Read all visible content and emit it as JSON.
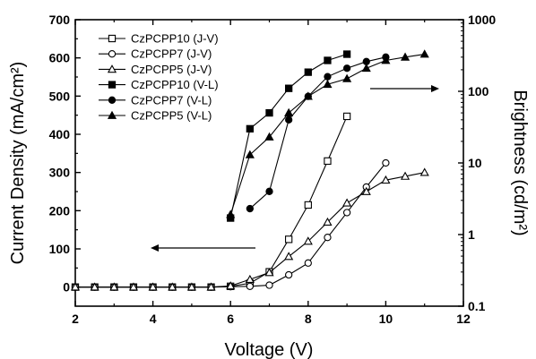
{
  "chart_data": {
    "type": "line",
    "title": "",
    "xlabel": "Voltage (V)",
    "ylabel_left": "Current Density (mA/cm²)",
    "ylabel_right": "Brightness (cd/m²)",
    "xlim": [
      2,
      12
    ],
    "ylim_left": [
      -50,
      700
    ],
    "ylim_right": [
      0.1,
      1000
    ],
    "right_scale": "log",
    "x_ticks": [
      "2",
      "4",
      "6",
      "8",
      "10",
      "12"
    ],
    "y_left_ticks": [
      "0",
      "100",
      "200",
      "300",
      "400",
      "500",
      "600",
      "700"
    ],
    "y_right_ticks": [
      "0.1",
      "1",
      "10",
      "100",
      "1000"
    ],
    "grid": false,
    "legend_position": "top-left",
    "series": [
      {
        "name": "CzPCPP10 (J-V)",
        "axis": "left",
        "marker": "square",
        "filled": false,
        "x": [
          2.0,
          2.5,
          3.0,
          3.5,
          4.0,
          4.5,
          5.0,
          5.5,
          6.0,
          6.5,
          7.0,
          7.5,
          8.0,
          8.5,
          9.0
        ],
        "y": [
          0,
          0,
          0,
          0,
          0,
          0,
          0,
          0,
          2,
          10,
          40,
          125,
          215,
          330,
          447
        ]
      },
      {
        "name": "CzPCPP7 (J-V)",
        "axis": "left",
        "marker": "circle",
        "filled": false,
        "x": [
          2.0,
          2.5,
          3.0,
          3.5,
          4.0,
          4.5,
          5.0,
          5.5,
          6.0,
          6.5,
          7.0,
          7.5,
          8.0,
          8.5,
          9.0,
          9.5,
          10.0
        ],
        "y": [
          0,
          0,
          0,
          0,
          0,
          0,
          0,
          0,
          1,
          2,
          5,
          32,
          63,
          130,
          195,
          262,
          325
        ]
      },
      {
        "name": "CzPCPP5 (J-V)",
        "axis": "left",
        "marker": "triangle",
        "filled": false,
        "x": [
          2.0,
          2.5,
          3.0,
          3.5,
          4.0,
          4.5,
          5.0,
          5.5,
          6.0,
          6.5,
          7.0,
          7.5,
          8.0,
          8.5,
          9.0,
          9.5,
          10.0,
          10.5,
          11.0
        ],
        "y": [
          0,
          0,
          0,
          0,
          0,
          0,
          0,
          0,
          3,
          20,
          38,
          80,
          120,
          170,
          220,
          250,
          280,
          290,
          300
        ]
      },
      {
        "name": "CzPCPP10 (V-L)",
        "axis": "right",
        "marker": "square",
        "filled": true,
        "x": [
          6.0,
          6.5,
          7.0,
          7.5,
          8.0,
          8.5,
          9.0
        ],
        "y": [
          1.7,
          30,
          50,
          110,
          185,
          270,
          330
        ]
      },
      {
        "name": "CzPCPP7 (V-L)",
        "axis": "right",
        "marker": "circle",
        "filled": true,
        "x": [
          6.5,
          7.0,
          7.5,
          8.0,
          8.5,
          9.0,
          9.5,
          10.0
        ],
        "y": [
          2.3,
          4.0,
          40,
          85,
          160,
          210,
          260,
          300
        ]
      },
      {
        "name": "CzPCPP5 (V-L)",
        "axis": "right",
        "marker": "triangle",
        "filled": true,
        "x": [
          6.0,
          6.5,
          7.0,
          7.5,
          8.0,
          8.5,
          9.0,
          9.5,
          10.0,
          10.5,
          11.0
        ],
        "y": [
          1.9,
          13,
          23,
          50,
          85,
          125,
          150,
          210,
          270,
          300,
          330
        ]
      }
    ]
  }
}
